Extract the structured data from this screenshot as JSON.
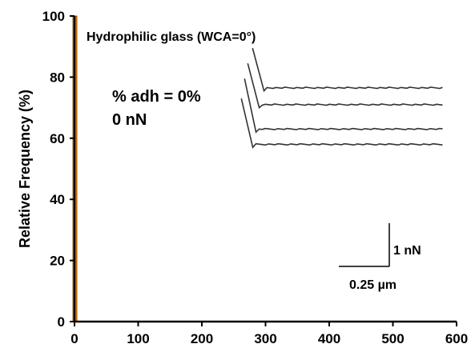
{
  "chart_data": {
    "type": "bar",
    "xlabel": "",
    "ylabel": "Relative Frequency (%)",
    "xlim": [
      0,
      600
    ],
    "ylim": [
      0,
      100
    ],
    "xticks": [
      0,
      100,
      200,
      300,
      400,
      500,
      600
    ],
    "yticks": [
      0,
      20,
      40,
      60,
      80,
      100
    ],
    "grid": false,
    "series": [
      {
        "x": [
          0
        ],
        "values": [
          100
        ],
        "color": "#E8820C"
      }
    ],
    "annotations": {
      "surface": "Hydrophilic glass (WCA=0°)",
      "adhesion_percent": "% adh = 0%",
      "adhesion_force": "0 nN",
      "scale_force": "1 nN",
      "scale_distance": "0.25 µm"
    },
    "force_curves_inset": {
      "description_color": "#333333",
      "curves": [
        {
          "baseline": 76.5,
          "peak": 89.5
        },
        {
          "baseline": 71.0,
          "peak": 84.5
        },
        {
          "baseline": 63.0,
          "peak": 79.5
        },
        {
          "baseline": 58.0,
          "peak": 73.0
        }
      ]
    }
  }
}
